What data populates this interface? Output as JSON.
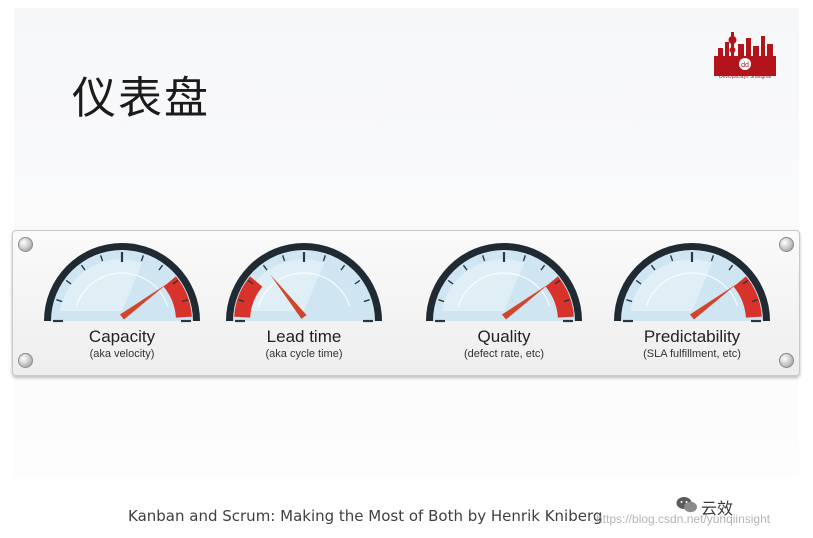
{
  "slide": {
    "title": "仪表盘",
    "citation": "Kanban and Scrum: Making the Most of Both by Henrik Kniberg"
  },
  "logo": {
    "text": "DevOpsDays Shanghai"
  },
  "gauges": [
    {
      "label": "Capacity",
      "sublabel": "(aka velocity)",
      "level": 0.78,
      "red_zone": "high"
    },
    {
      "label": "Lead time",
      "sublabel": "(aka cycle time)",
      "level": 0.3,
      "red_zone": "low"
    },
    {
      "label": "Quality",
      "sublabel": "(defect rate, etc)",
      "level": 0.78,
      "red_zone": "high"
    },
    {
      "label": "Predictability",
      "sublabel": "(SLA fulfillment, etc)",
      "level": 0.78,
      "red_zone": "high"
    }
  ],
  "watermark": {
    "url": "https://blog.csdn.net/yunqiinsight",
    "brand": "云效",
    "icon": "wechat-icon"
  },
  "colors": {
    "dial_face": "#cfe6f2",
    "dial_rim": "#1f2a33",
    "red_zone": "#d8332b",
    "needle": "#d1452b"
  }
}
